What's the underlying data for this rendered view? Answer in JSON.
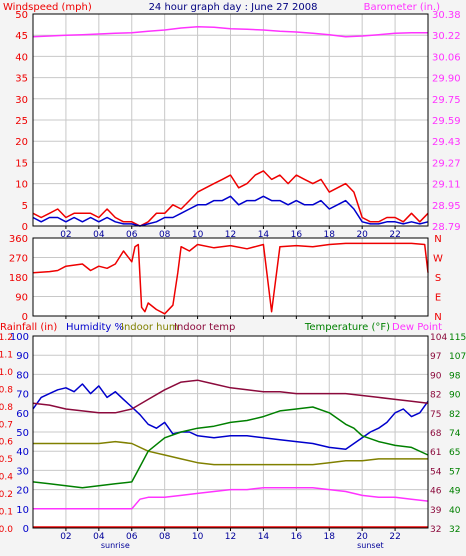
{
  "colors": {
    "background": "#f4f4f4",
    "plot_bg": "#ffffff",
    "frame": "#000000",
    "grid": "#c8c8c8",
    "red": "#ee0000",
    "magenta": "#ff33ff",
    "blue": "#0000cc",
    "navy": "#000099",
    "green": "#008000",
    "olive": "#808000",
    "maroon": "#8b0a3c",
    "title_blue": "#000080"
  },
  "x_tick_labels": [
    "02",
    "04",
    "06",
    "08",
    "10",
    "12",
    "14",
    "16",
    "18",
    "20",
    "22"
  ],
  "sunrise_label": "sunrise",
  "sunset_label": "sunset",
  "chart_data": [
    {
      "type": "line",
      "title": "24 hour graph day : June 27 2008",
      "ylabel_left": "Windspeed (mph)",
      "ylabel_right": "Barometer (in.)",
      "ylim_left": [
        0,
        50
      ],
      "yticks_left": [
        "0",
        "5",
        "10",
        "15",
        "20",
        "25",
        "30",
        "35",
        "40",
        "45",
        "50"
      ],
      "ylim_right": [
        28.79,
        30.38
      ],
      "yticks_right": [
        "28.79",
        "28.95",
        "29.11",
        "29.27",
        "29.43",
        "29.59",
        "29.75",
        "29.90",
        "30.06",
        "30.22",
        "30.38"
      ],
      "xlim": [
        0,
        24
      ],
      "grid": true,
      "series": [
        {
          "axis": "right",
          "color": "magenta",
          "x": [
            0,
            1,
            2,
            3,
            4,
            5,
            6,
            7,
            8,
            9,
            10,
            11,
            12,
            13,
            14,
            15,
            16,
            17,
            18,
            19,
            20,
            21,
            22,
            23,
            24
          ],
          "y": [
            30.21,
            30.215,
            30.22,
            30.225,
            30.23,
            30.235,
            30.24,
            30.25,
            30.26,
            30.275,
            30.285,
            30.28,
            30.27,
            30.265,
            30.26,
            30.25,
            30.245,
            30.235,
            30.225,
            30.21,
            30.215,
            30.225,
            30.235,
            30.24,
            30.24
          ]
        },
        {
          "axis": "left",
          "color": "red",
          "x": [
            0,
            0.5,
            1,
            1.5,
            2,
            2.5,
            3,
            3.5,
            4,
            4.5,
            5,
            5.5,
            6,
            6.5,
            7,
            7.5,
            8,
            8.5,
            9,
            9.5,
            10,
            10.5,
            11,
            11.5,
            12,
            12.5,
            13,
            13.5,
            14,
            14.5,
            15,
            15.5,
            16,
            16.5,
            17,
            17.5,
            18,
            18.5,
            19,
            19.5,
            20,
            20.5,
            21,
            21.5,
            22,
            22.5,
            23,
            23.5,
            24
          ],
          "y": [
            3,
            2,
            3,
            4,
            2,
            3,
            3,
            3,
            2,
            4,
            2,
            1,
            1,
            0,
            1,
            3,
            3,
            5,
            4,
            6,
            8,
            9,
            10,
            11,
            12,
            9,
            10,
            12,
            13,
            11,
            12,
            10,
            12,
            11,
            10,
            11,
            8,
            9,
            10,
            8,
            2,
            1,
            1,
            2,
            2,
            1,
            3,
            1,
            3
          ]
        },
        {
          "axis": "left",
          "color": "blue",
          "x": [
            0,
            0.5,
            1,
            1.5,
            2,
            2.5,
            3,
            3.5,
            4,
            4.5,
            5,
            5.5,
            6,
            6.5,
            7,
            7.5,
            8,
            8.5,
            9,
            9.5,
            10,
            10.5,
            11,
            11.5,
            12,
            12.5,
            13,
            13.5,
            14,
            14.5,
            15,
            15.5,
            16,
            16.5,
            17,
            17.5,
            18,
            18.5,
            19,
            19.5,
            20,
            20.5,
            21,
            21.5,
            22,
            22.5,
            23,
            23.5,
            24
          ],
          "y": [
            2,
            1,
            2,
            2,
            1,
            2,
            1,
            2,
            1,
            2,
            1,
            0.5,
            0.5,
            0,
            0.5,
            1,
            2,
            2,
            3,
            4,
            5,
            5,
            6,
            6,
            7,
            5,
            6,
            6,
            7,
            6,
            6,
            5,
            6,
            5,
            5,
            6,
            4,
            5,
            6,
            4,
            1,
            0.5,
            0.5,
            1,
            1,
            0.5,
            1,
            0.5,
            1
          ]
        }
      ]
    },
    {
      "type": "line",
      "title": "",
      "ylabel_left": "",
      "ylim_left": [
        0,
        360
      ],
      "yticks_left": [
        "0",
        "90",
        "180",
        "270",
        "360"
      ],
      "yticks_right_labels": [
        "N",
        "W",
        "S",
        "E",
        "N"
      ],
      "xlim": [
        0,
        24
      ],
      "grid": true,
      "series": [
        {
          "axis": "left",
          "color": "red",
          "x": [
            0,
            1,
            1.5,
            2,
            3,
            3.5,
            4,
            4.5,
            5,
            5.5,
            6,
            6.2,
            6.4,
            6.6,
            6.8,
            7,
            7.5,
            8,
            8.5,
            8.8,
            9,
            9.5,
            10,
            11,
            12,
            13,
            14,
            14.5,
            15,
            16,
            17,
            18,
            19,
            20,
            21,
            22,
            23,
            23.8,
            24
          ],
          "y": [
            200,
            205,
            210,
            230,
            240,
            210,
            230,
            220,
            240,
            300,
            250,
            320,
            330,
            40,
            20,
            60,
            30,
            10,
            50,
            200,
            320,
            300,
            330,
            315,
            325,
            310,
            330,
            20,
            320,
            325,
            320,
            330,
            335,
            335,
            335,
            335,
            335,
            330,
            200
          ]
        }
      ]
    },
    {
      "type": "line",
      "title": "",
      "ylabel_left": "Rainfall (in)",
      "ylabel_left2": "Humidity %",
      "ylabel_left3": "Indoor hum",
      "ylabel_left4": "Indoor temp",
      "ylabel_right": "Temperature (°F)",
      "ylabel_right2": "Dew Point",
      "ylim_left": [
        0,
        100
      ],
      "yticks_left": [
        "0",
        "10",
        "20",
        "30",
        "40",
        "50",
        "60",
        "70",
        "80",
        "90",
        "100"
      ],
      "yticks_rain": [
        "0.0",
        "0.1",
        "0.2",
        "0.4",
        "0.5",
        "0.6",
        "0.7",
        "0.8",
        "0.8",
        "1.0",
        "1.1",
        "1.2"
      ],
      "ylim_right": [
        32,
        115
      ],
      "yticks_right_red": [
        "32",
        "39",
        "46",
        "54",
        "61",
        "68",
        "75",
        "82",
        "90",
        "97",
        "104"
      ],
      "yticks_right_green": [
        "32",
        "40",
        "49",
        "57",
        "65",
        "74",
        "82",
        "90",
        "98",
        "107",
        "115"
      ],
      "xlim": [
        0,
        24
      ],
      "grid": true,
      "series": [
        {
          "name": "Rainfall (in)",
          "axis": "left",
          "color": "red",
          "x": [
            0,
            24
          ],
          "y": [
            0.5,
            0.5
          ]
        },
        {
          "name": "Humidity %",
          "axis": "left",
          "color": "blue",
          "x": [
            0,
            0.5,
            1,
            1.5,
            2,
            2.5,
            3,
            3.5,
            4,
            4.5,
            5,
            5.5,
            6,
            6.5,
            7,
            7.5,
            8,
            8.5,
            9,
            9.5,
            10,
            11,
            12,
            13,
            14,
            15,
            16,
            17,
            18,
            19,
            20,
            20.5,
            21,
            21.5,
            22,
            22.5,
            23,
            23.5,
            24
          ],
          "y": [
            62,
            68,
            70,
            72,
            73,
            71,
            75,
            70,
            74,
            68,
            71,
            67,
            63,
            59,
            54,
            52,
            55,
            49,
            50,
            50,
            48,
            47,
            48,
            48,
            47,
            46,
            45,
            44,
            42,
            41,
            47,
            50,
            52,
            55,
            60,
            62,
            58,
            60,
            66
          ]
        },
        {
          "name": "Indoor hum",
          "axis": "left",
          "color": "olive",
          "x": [
            0,
            1,
            2,
            3,
            4,
            5,
            6,
            7,
            8,
            9,
            10,
            11,
            12,
            13,
            14,
            15,
            16,
            17,
            18,
            19,
            20,
            21,
            22,
            23,
            24
          ],
          "y": [
            44,
            44,
            44,
            44,
            44,
            45,
            44,
            40,
            38,
            36,
            34,
            33,
            33,
            33,
            33,
            33,
            33,
            33,
            34,
            35,
            35,
            36,
            36,
            36,
            36
          ]
        },
        {
          "name": "Indoor temp",
          "axis": "left",
          "color": "maroon",
          "x": [
            0,
            1,
            2,
            3,
            4,
            5,
            6,
            7,
            8,
            9,
            10,
            11,
            12,
            13,
            14,
            15,
            16,
            17,
            18,
            19,
            20,
            21,
            22,
            23,
            24
          ],
          "y": [
            65,
            64,
            62,
            61,
            60,
            60,
            62,
            67,
            72,
            76,
            77,
            75,
            73,
            72,
            71,
            71,
            70,
            70,
            70,
            70,
            69,
            68,
            67,
            66,
            65
          ]
        },
        {
          "name": "Temperature (°F)",
          "axis": "left",
          "color": "green",
          "x": [
            0,
            1,
            2,
            3,
            4,
            5,
            6,
            6.5,
            7,
            8,
            9,
            10,
            11,
            12,
            13,
            14,
            15,
            16,
            17,
            18,
            19,
            19.5,
            20,
            21,
            22,
            23,
            24
          ],
          "y": [
            24,
            23,
            22,
            21,
            22,
            23,
            24,
            32,
            40,
            47,
            50,
            52,
            53,
            55,
            56,
            58,
            61,
            62,
            63,
            60,
            54,
            52,
            48,
            45,
            43,
            42,
            38
          ]
        },
        {
          "name": "Dew Point",
          "axis": "left",
          "color": "magenta",
          "x": [
            0,
            1,
            2,
            3,
            4,
            5,
            6,
            6.5,
            7,
            8,
            9,
            10,
            11,
            12,
            13,
            14,
            15,
            16,
            17,
            18,
            19,
            20,
            21,
            22,
            23,
            24
          ],
          "y": [
            10,
            10,
            10,
            10,
            10,
            10,
            10,
            15,
            16,
            16,
            17,
            18,
            19,
            20,
            20,
            21,
            21,
            21,
            21,
            20,
            19,
            17,
            16,
            16,
            15,
            14
          ]
        }
      ]
    }
  ]
}
